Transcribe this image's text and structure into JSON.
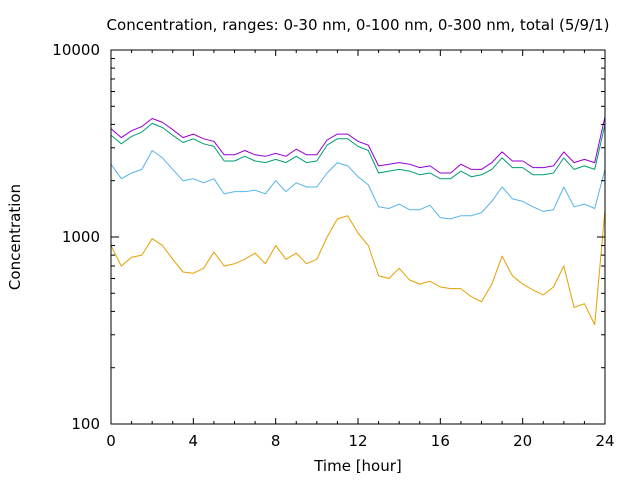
{
  "chart_data": {
    "type": "line",
    "title": "Concentration, ranges: 0-30 nm, 0-100 nm, 0-300 nm, total (5/9/1)",
    "xlabel": "Time [hour]",
    "ylabel": "Concentration",
    "xlim": [
      0,
      24
    ],
    "ylim": [
      100,
      10000
    ],
    "yscale": "log",
    "grid": false,
    "x_ticks": [
      "0",
      "4",
      "8",
      "12",
      "16",
      "20",
      "24"
    ],
    "y_ticks": [
      "100",
      "1000",
      "10000"
    ],
    "x": [
      0,
      0.5,
      1,
      1.5,
      2,
      2.5,
      3,
      3.5,
      4,
      4.5,
      5,
      5.5,
      6,
      6.5,
      7,
      7.5,
      8,
      8.5,
      9,
      9.5,
      10,
      10.5,
      11,
      11.5,
      12,
      12.5,
      13,
      13.5,
      14,
      14.5,
      15,
      15.5,
      16,
      16.5,
      17,
      17.5,
      18,
      18.5,
      19,
      19.5,
      20,
      20.5,
      21,
      21.5,
      22,
      22.5,
      23,
      23.5,
      24
    ],
    "series": [
      {
        "color": "#e69f00",
        "values": [
          900,
          700,
          780,
          800,
          980,
          900,
          760,
          650,
          640,
          680,
          830,
          700,
          720,
          760,
          820,
          720,
          900,
          760,
          820,
          720,
          760,
          1000,
          1250,
          1300,
          1050,
          900,
          620,
          600,
          680,
          590,
          560,
          580,
          540,
          530,
          530,
          480,
          450,
          560,
          790,
          620,
          560,
          520,
          490,
          540,
          700,
          420,
          440,
          340,
          1400
        ]
      },
      {
        "color": "#56b4e9",
        "values": [
          2450,
          2050,
          2200,
          2300,
          2900,
          2650,
          2300,
          2000,
          2050,
          1950,
          2050,
          1700,
          1750,
          1750,
          1780,
          1700,
          2000,
          1750,
          1950,
          1850,
          1850,
          2200,
          2500,
          2400,
          2100,
          1900,
          1450,
          1420,
          1500,
          1400,
          1400,
          1480,
          1270,
          1250,
          1300,
          1300,
          1350,
          1550,
          1850,
          1600,
          1550,
          1450,
          1370,
          1400,
          1850,
          1450,
          1500,
          1420,
          2300
        ]
      },
      {
        "color": "#009e73",
        "values": [
          3500,
          3150,
          3450,
          3650,
          4050,
          3850,
          3500,
          3200,
          3350,
          3150,
          3050,
          2550,
          2550,
          2700,
          2550,
          2500,
          2600,
          2500,
          2700,
          2500,
          2550,
          3100,
          3350,
          3350,
          3050,
          2900,
          2200,
          2250,
          2300,
          2250,
          2150,
          2200,
          2050,
          2050,
          2250,
          2100,
          2150,
          2300,
          2650,
          2350,
          2350,
          2150,
          2150,
          2200,
          2650,
          2300,
          2400,
          2300,
          4000
        ]
      },
      {
        "color": "#9400d3",
        "values": [
          3800,
          3400,
          3700,
          3900,
          4300,
          4100,
          3750,
          3400,
          3550,
          3350,
          3250,
          2750,
          2750,
          2900,
          2750,
          2700,
          2800,
          2700,
          2950,
          2750,
          2750,
          3300,
          3550,
          3550,
          3250,
          3100,
          2400,
          2450,
          2500,
          2450,
          2350,
          2400,
          2200,
          2200,
          2450,
          2300,
          2300,
          2500,
          2850,
          2550,
          2550,
          2350,
          2350,
          2400,
          2850,
          2500,
          2600,
          2500,
          4400
        ]
      }
    ]
  }
}
